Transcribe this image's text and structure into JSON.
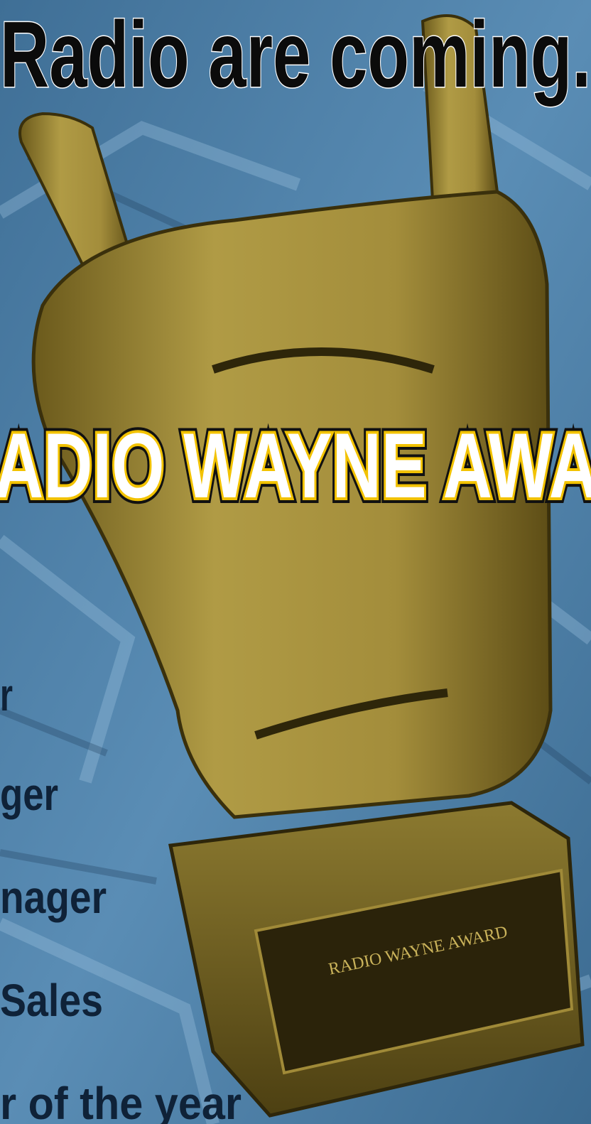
{
  "headline": "Radio are coming.",
  "banner": "ADIO WAYNE AWA",
  "categories": [
    "r",
    "ger",
    "nager",
    "Sales",
    "r of the year"
  ],
  "plaque": {
    "title": "RADIO WAYNE AWARD"
  }
}
